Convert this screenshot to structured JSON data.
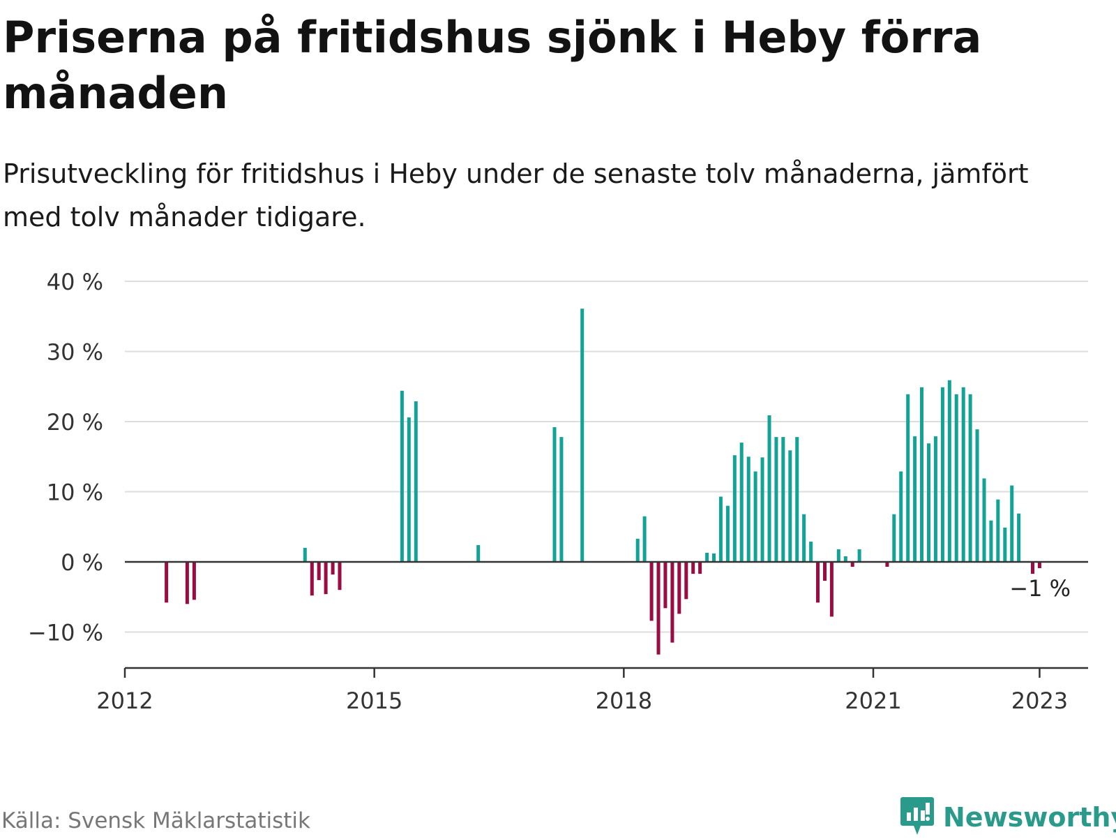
{
  "header": {
    "title": "Priserna på fritidshus sjönk i Heby förra månaden",
    "subtitle": "Prisutveckling för fritidshus i Heby under de senaste tolv månaderna, jämfört med tolv månader tidigare."
  },
  "footer": {
    "source": "Källa: Svensk Mäklarstatistik",
    "brand": "Newsworthy"
  },
  "colors": {
    "positive": "#13a396",
    "negative": "#9a0c42",
    "grid": "#dddddd",
    "axis": "#333333",
    "brand": "#2a9a8a"
  },
  "icons": {
    "brand_logo": "bar-chart-speech-bubble-icon"
  },
  "chart_data": {
    "type": "bar",
    "title": "Priserna på fritidshus sjönk i Heby förra månaden",
    "subtitle": "Prisutveckling för fritidshus i Heby under de senaste tolv månaderna, jämfört med tolv månader tidigare.",
    "xlabel": "",
    "ylabel": "",
    "unit": "%",
    "ylim": [
      -15,
      40
    ],
    "yticks": [
      -10,
      0,
      10,
      20,
      30,
      40
    ],
    "ytick_labels": [
      "−10 %",
      "0 %",
      "10 %",
      "20 %",
      "30 %",
      "40 %"
    ],
    "xlim": [
      "2012-01",
      "2023-06"
    ],
    "xticks": [
      "2012-01",
      "2015-01",
      "2018-01",
      "2021-01",
      "2023-01"
    ],
    "xtick_labels": [
      "2012",
      "2015",
      "2018",
      "2021",
      "2023"
    ],
    "grid": true,
    "legend": "none",
    "annotation": {
      "x": "2023-01",
      "text": "−1 %"
    },
    "bars": [
      {
        "x": "2012-07",
        "y": -5.8
      },
      {
        "x": "2012-10",
        "y": -6.0
      },
      {
        "x": "2012-11",
        "y": -5.4
      },
      {
        "x": "2014-03",
        "y": 2.0
      },
      {
        "x": "2014-04",
        "y": -4.8
      },
      {
        "x": "2014-05",
        "y": -2.6
      },
      {
        "x": "2014-06",
        "y": -4.6
      },
      {
        "x": "2014-07",
        "y": -1.8
      },
      {
        "x": "2014-08",
        "y": -4.0
      },
      {
        "x": "2015-05",
        "y": 24.4
      },
      {
        "x": "2015-06",
        "y": 20.6
      },
      {
        "x": "2015-07",
        "y": 22.9
      },
      {
        "x": "2016-04",
        "y": 2.4
      },
      {
        "x": "2017-03",
        "y": 19.2
      },
      {
        "x": "2017-04",
        "y": 17.8
      },
      {
        "x": "2017-07",
        "y": 36.1
      },
      {
        "x": "2018-03",
        "y": 3.3
      },
      {
        "x": "2018-04",
        "y": 6.5
      },
      {
        "x": "2018-05",
        "y": -8.4
      },
      {
        "x": "2018-06",
        "y": -13.2
      },
      {
        "x": "2018-07",
        "y": -6.6
      },
      {
        "x": "2018-08",
        "y": -11.5
      },
      {
        "x": "2018-09",
        "y": -7.4
      },
      {
        "x": "2018-10",
        "y": -5.3
      },
      {
        "x": "2018-11",
        "y": -1.7
      },
      {
        "x": "2018-12",
        "y": -1.7
      },
      {
        "x": "2019-01",
        "y": 1.3
      },
      {
        "x": "2019-02",
        "y": 1.2
      },
      {
        "x": "2019-03",
        "y": 9.3
      },
      {
        "x": "2019-04",
        "y": 8.0
      },
      {
        "x": "2019-05",
        "y": 15.2
      },
      {
        "x": "2019-06",
        "y": 17.0
      },
      {
        "x": "2019-07",
        "y": 15.0
      },
      {
        "x": "2019-08",
        "y": 12.9
      },
      {
        "x": "2019-09",
        "y": 14.9
      },
      {
        "x": "2019-10",
        "y": 20.9
      },
      {
        "x": "2019-11",
        "y": 17.8
      },
      {
        "x": "2019-12",
        "y": 17.8
      },
      {
        "x": "2020-01",
        "y": 15.9
      },
      {
        "x": "2020-02",
        "y": 17.8
      },
      {
        "x": "2020-03",
        "y": 6.8
      },
      {
        "x": "2020-04",
        "y": 2.9
      },
      {
        "x": "2020-05",
        "y": -5.8
      },
      {
        "x": "2020-06",
        "y": -2.7
      },
      {
        "x": "2020-07",
        "y": -7.8
      },
      {
        "x": "2020-08",
        "y": 1.8
      },
      {
        "x": "2020-09",
        "y": 0.8
      },
      {
        "x": "2020-10",
        "y": -0.7
      },
      {
        "x": "2020-11",
        "y": 1.8
      },
      {
        "x": "2021-03",
        "y": -0.7
      },
      {
        "x": "2021-04",
        "y": 6.8
      },
      {
        "x": "2021-05",
        "y": 12.9
      },
      {
        "x": "2021-06",
        "y": 23.9
      },
      {
        "x": "2021-07",
        "y": 17.9
      },
      {
        "x": "2021-08",
        "y": 24.9
      },
      {
        "x": "2021-09",
        "y": 16.9
      },
      {
        "x": "2021-10",
        "y": 17.9
      },
      {
        "x": "2021-11",
        "y": 24.9
      },
      {
        "x": "2021-12",
        "y": 25.9
      },
      {
        "x": "2022-01",
        "y": 23.9
      },
      {
        "x": "2022-02",
        "y": 24.9
      },
      {
        "x": "2022-03",
        "y": 23.9
      },
      {
        "x": "2022-04",
        "y": 18.9
      },
      {
        "x": "2022-05",
        "y": 11.9
      },
      {
        "x": "2022-06",
        "y": 5.9
      },
      {
        "x": "2022-07",
        "y": 8.9
      },
      {
        "x": "2022-08",
        "y": 4.9
      },
      {
        "x": "2022-09",
        "y": 10.9
      },
      {
        "x": "2022-10",
        "y": 6.9
      },
      {
        "x": "2022-12",
        "y": -1.7
      },
      {
        "x": "2023-01",
        "y": -0.9
      }
    ]
  }
}
